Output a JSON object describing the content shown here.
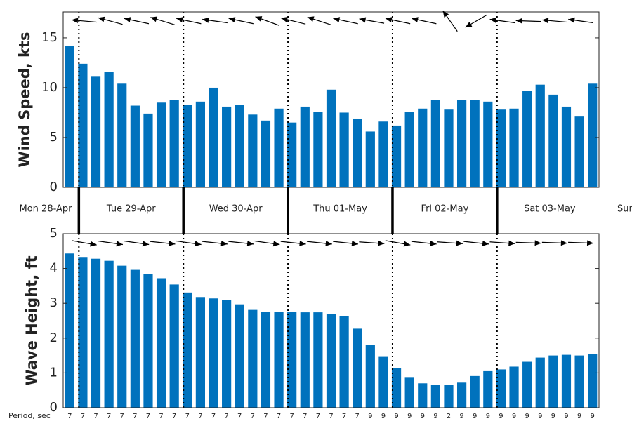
{
  "chart_data": [
    {
      "type": "bar",
      "ylabel": "Wind Speed, kts",
      "color": "#0072bd",
      "values": [
        14.2,
        12.4,
        11.1,
        11.6,
        10.4,
        8.2,
        7.4,
        8.5,
        8.8,
        8.3,
        8.6,
        10.0,
        8.1,
        8.3,
        7.3,
        6.7,
        7.9,
        6.5,
        8.1,
        7.6,
        9.8,
        7.5,
        6.9,
        5.6,
        6.6,
        6.2,
        7.6,
        7.9,
        8.8,
        7.8,
        8.8,
        8.8,
        8.6,
        7.8,
        7.9,
        9.7,
        10.3,
        9.3,
        8.1,
        7.1,
        10.4
      ],
      "ylim": [
        0,
        17.6
      ],
      "yticks": [
        0,
        5,
        10,
        15
      ],
      "arrow_directions": [
        175,
        165,
        168,
        163,
        168,
        172,
        168,
        160,
        166,
        162,
        168,
        170,
        168,
        168,
        125,
        210,
        172,
        178,
        175,
        172
      ]
    },
    {
      "type": "bar",
      "ylabel": "Wave Height, ft",
      "color": "#0072bd",
      "values": [
        4.43,
        4.33,
        4.28,
        4.22,
        4.08,
        3.96,
        3.84,
        3.72,
        3.54,
        3.31,
        3.18,
        3.14,
        3.09,
        2.97,
        2.81,
        2.76,
        2.76,
        2.76,
        2.74,
        2.74,
        2.7,
        2.63,
        2.27,
        1.8,
        1.46,
        1.13,
        0.86,
        0.7,
        0.66,
        0.66,
        0.72,
        0.91,
        1.05,
        1.1,
        1.18,
        1.32,
        1.44,
        1.5,
        1.52,
        1.5,
        1.54
      ],
      "ylim": [
        0,
        5
      ],
      "yticks": [
        0,
        1,
        2,
        3,
        4,
        5
      ],
      "arrow_directions": [
        -10,
        -8,
        -8,
        -6,
        -8,
        -6,
        -6,
        -8,
        -6,
        -6,
        -6,
        -4,
        -10,
        -6,
        -4,
        -6,
        -4,
        -2,
        -2,
        -2
      ]
    }
  ],
  "day_labels": [
    "Mon 28-Apr",
    "Tue 29-Apr",
    "Wed 30-Apr",
    "Thu 01-May",
    "Fri 02-May",
    "Sat 03-May",
    "Sun"
  ],
  "period_label": "Period, sec",
  "periods": [
    7,
    7,
    7,
    7,
    7,
    7,
    7,
    7,
    7,
    7,
    7,
    7,
    7,
    7,
    7,
    7,
    7,
    7,
    7,
    7,
    7,
    7,
    7,
    9,
    9,
    9,
    9,
    9,
    9,
    2,
    9,
    9,
    9,
    9,
    9,
    9,
    9,
    9,
    9,
    9,
    9
  ]
}
